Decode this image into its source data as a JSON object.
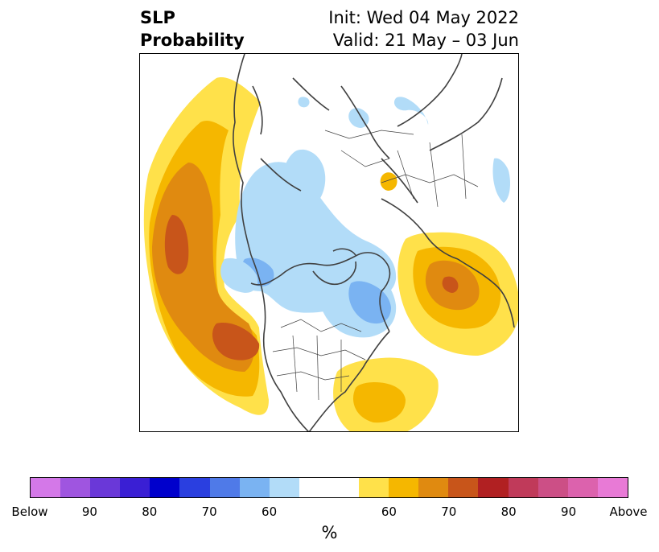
{
  "header": {
    "title_line1": "SLP",
    "title_line2": "Probability",
    "init": "Init: Wed 04 May 2022",
    "valid": "Valid: 21 May – 03 Jun"
  },
  "colorbar": {
    "colors": [
      "#d478e8",
      "#9f55e0",
      "#6a38d8",
      "#3a1fd4",
      "#0000cc",
      "#2a3fe0",
      "#4f7ae8",
      "#7ab3f2",
      "#b2dcf8",
      "#ffffff",
      "#ffe14a",
      "#f5b700",
      "#e08a10",
      "#c8551a",
      "#b12022",
      "#c03a5a",
      "#cc4f86",
      "#dc62ad",
      "#e87ad6"
    ],
    "tick_labels": [
      "Below",
      "90",
      "80",
      "70",
      "60",
      "60",
      "70",
      "80",
      "90",
      "Above"
    ],
    "unit_label": "%"
  },
  "map": {
    "palette": {
      "blue_light": "#b2dcf8",
      "blue_mid": "#7ab3f2",
      "yellow": "#ffe14a",
      "gold": "#f5b700",
      "orange": "#e08a10",
      "red_orange": "#c8551a",
      "coast": "#404040"
    }
  }
}
